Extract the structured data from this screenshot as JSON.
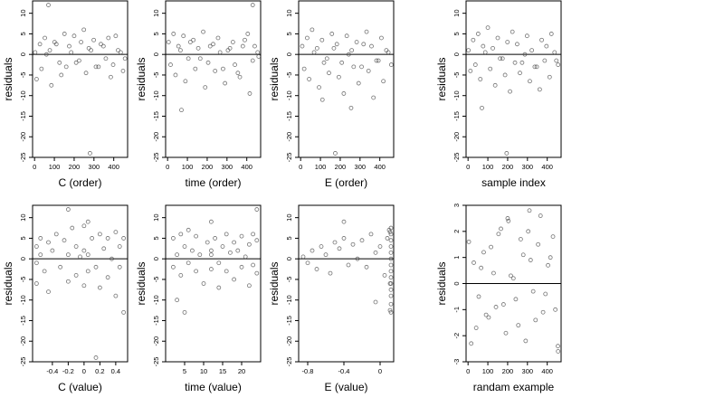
{
  "chart_data": [
    {
      "type": "scatter",
      "xlabel": "C (order)",
      "ylabel": "residuals",
      "xlim": [
        -10,
        470
      ],
      "ylim": [
        -25,
        13
      ],
      "xticks": [
        0,
        100,
        200,
        300,
        400
      ],
      "yticks": [
        -25,
        -20,
        -15,
        -10,
        -5,
        0,
        5,
        10
      ],
      "reference_line": 0,
      "series": [
        {
          "x": [
            3,
            27,
            52,
            77,
            101,
            126,
            151,
            175,
            200,
            225,
            249,
            274,
            299,
            323,
            348,
            373,
            397,
            422,
            447,
            10,
            35,
            60,
            85,
            110,
            135,
            160,
            185,
            210,
            235,
            260,
            285,
            310,
            335,
            360,
            385,
            410,
            435,
            457,
            70,
            280
          ],
          "y": [
            0.5,
            2.5,
            4.0,
            1.0,
            3.0,
            -2.0,
            5.0,
            2.0,
            4.5,
            -1.5,
            6.0,
            1.5,
            3.5,
            -3.0,
            2.0,
            4.0,
            -2.5,
            1.0,
            -4.0,
            -6.0,
            -3.5,
            0.0,
            -7.5,
            2.5,
            -5.0,
            -3.0,
            0.5,
            -2.0,
            3.0,
            -4.5,
            1.0,
            -3.0,
            2.5,
            -1.0,
            -5.5,
            4.5,
            0.5,
            -1.0,
            12.0,
            -24.0
          ]
        }
      ]
    },
    {
      "type": "scatter",
      "xlabel": "time (order)",
      "ylabel": "residuals",
      "xlim": [
        -10,
        470
      ],
      "ylim": [
        -25,
        13
      ],
      "xticks": [
        0,
        100,
        200,
        300,
        400
      ],
      "yticks": [
        -25,
        -20,
        -15,
        -10,
        -5,
        0,
        5,
        10
      ],
      "reference_line": 0,
      "series": [
        {
          "x": [
            5,
            30,
            55,
            80,
            105,
            130,
            155,
            180,
            205,
            230,
            255,
            280,
            305,
            330,
            355,
            380,
            405,
            430,
            455,
            15,
            40,
            65,
            90,
            115,
            140,
            165,
            190,
            215,
            240,
            265,
            290,
            315,
            340,
            365,
            390,
            415,
            440,
            460,
            430,
            70
          ],
          "y": [
            3.0,
            5.0,
            2.0,
            4.5,
            -1.0,
            3.5,
            1.5,
            5.5,
            -2.0,
            2.5,
            4.0,
            -3.5,
            1.0,
            3.0,
            -4.5,
            2.0,
            5.0,
            -1.5,
            0.5,
            -2.5,
            -5.0,
            1.0,
            -6.5,
            3.0,
            -3.5,
            -1.0,
            -8.0,
            2.0,
            -4.0,
            0.5,
            -7.0,
            1.5,
            -2.5,
            -5.5,
            3.5,
            -9.5,
            2.0,
            -0.5,
            12.0,
            -13.5
          ]
        }
      ]
    },
    {
      "type": "scatter",
      "xlabel": "E (order)",
      "ylabel": "residuals",
      "xlim": [
        -10,
        470
      ],
      "ylim": [
        -25,
        13
      ],
      "xticks": [
        0,
        100,
        200,
        300,
        400
      ],
      "yticks": [
        -25,
        -20,
        -15,
        -10,
        -5,
        0,
        5,
        10
      ],
      "reference_line": 0,
      "series": [
        {
          "x": [
            8,
            33,
            58,
            83,
            108,
            133,
            158,
            183,
            208,
            233,
            258,
            283,
            308,
            333,
            358,
            383,
            408,
            433,
            458,
            18,
            43,
            68,
            93,
            118,
            143,
            168,
            193,
            218,
            243,
            268,
            293,
            318,
            343,
            368,
            393,
            418,
            443,
            110,
            255,
            175
          ],
          "y": [
            2.0,
            4.0,
            6.0,
            1.5,
            3.5,
            -1.0,
            5.0,
            2.5,
            -2.0,
            4.5,
            1.0,
            3.0,
            -3.0,
            5.5,
            2.0,
            -1.5,
            4.0,
            1.0,
            -2.5,
            -3.5,
            -6.0,
            0.5,
            -8.0,
            -2.0,
            -4.5,
            1.5,
            -5.5,
            -9.5,
            0.0,
            -3.0,
            -7.0,
            2.5,
            -4.0,
            -10.5,
            -1.5,
            -6.5,
            0.5,
            -11.0,
            -13.0,
            -24.0
          ]
        }
      ]
    },
    {
      "type": "scatter",
      "xlabel": "sample index",
      "ylabel": "residuals",
      "xlim": [
        -10,
        470
      ],
      "ylim": [
        -25,
        13
      ],
      "xticks": [
        0,
        100,
        200,
        300,
        400
      ],
      "yticks": [
        -25,
        -20,
        -15,
        -10,
        -5,
        0,
        5,
        10
      ],
      "reference_line": 0,
      "series": [
        {
          "x": [
            2,
            26,
            51,
            76,
            100,
            125,
            150,
            174,
            199,
            224,
            248,
            273,
            298,
            322,
            347,
            372,
            396,
            421,
            446,
            12,
            37,
            62,
            87,
            112,
            137,
            162,
            187,
            212,
            237,
            262,
            287,
            312,
            337,
            362,
            387,
            412,
            437,
            455,
            70,
            195
          ],
          "y": [
            1.0,
            3.5,
            5.0,
            2.0,
            6.5,
            1.5,
            4.0,
            -1.0,
            3.0,
            5.5,
            2.5,
            -2.0,
            4.5,
            1.0,
            -3.0,
            3.5,
            2.0,
            5.0,
            -1.5,
            -4.0,
            -2.5,
            -6.0,
            0.5,
            -3.5,
            -7.5,
            -1.0,
            -5.0,
            -9.0,
            -2.0,
            -4.5,
            0.0,
            -6.5,
            -3.0,
            -8.5,
            -1.5,
            -5.5,
            0.5,
            -2.5,
            -13.0,
            -24.0
          ]
        }
      ]
    },
    {
      "type": "scatter",
      "xlabel": "C (value)",
      "ylabel": "residuals",
      "xlim": [
        -0.65,
        0.55
      ],
      "ylim": [
        -25,
        13
      ],
      "xticks": [
        -0.4,
        -0.2,
        0.0,
        0.2,
        0.4
      ],
      "yticks": [
        -25,
        -20,
        -15,
        -10,
        -5,
        0,
        5,
        10
      ],
      "reference_line": 0,
      "series": [
        {
          "x": [
            -0.6,
            -0.6,
            -0.6,
            -0.55,
            -0.55,
            -0.5,
            -0.45,
            -0.45,
            -0.4,
            -0.35,
            -0.3,
            -0.25,
            -0.2,
            -0.2,
            -0.15,
            -0.1,
            -0.1,
            -0.05,
            0.0,
            0.0,
            0.0,
            0.05,
            0.05,
            0.05,
            0.1,
            0.15,
            0.2,
            0.2,
            0.25,
            0.3,
            0.3,
            0.35,
            0.4,
            0.4,
            0.45,
            0.45,
            0.5,
            0.5,
            -0.2,
            0.15
          ],
          "y": [
            3.0,
            -1.0,
            -6.0,
            5.0,
            1.0,
            -3.0,
            4.0,
            -8.0,
            2.0,
            6.0,
            -2.0,
            4.5,
            1.0,
            -5.5,
            7.5,
            3.0,
            -4.0,
            0.5,
            8.0,
            2.0,
            -6.5,
            9.0,
            1.0,
            -3.0,
            5.0,
            -2.0,
            6.0,
            -7.0,
            2.5,
            5.0,
            -4.5,
            0.0,
            6.5,
            -9.0,
            3.0,
            -2.0,
            5.0,
            -13.0,
            12.0,
            -24.0
          ]
        }
      ]
    },
    {
      "type": "scatter",
      "xlabel": "time (value)",
      "ylabel": "residuals",
      "xlim": [
        0,
        25
      ],
      "ylim": [
        -25,
        13
      ],
      "xticks": [
        5,
        10,
        15,
        20
      ],
      "yticks": [
        -25,
        -20,
        -15,
        -10,
        -5,
        0,
        5,
        10
      ],
      "reference_line": 0,
      "series": [
        {
          "x": [
            2,
            2,
            3,
            4,
            4,
            5,
            6,
            6,
            7,
            8,
            8,
            9,
            10,
            11,
            12,
            12,
            12,
            13,
            14,
            14,
            15,
            16,
            16,
            17,
            18,
            18,
            19,
            20,
            20,
            21,
            22,
            22,
            23,
            23,
            24,
            24,
            3,
            12,
            24,
            5
          ],
          "y": [
            5.0,
            -2.0,
            1.0,
            6.0,
            -4.0,
            3.0,
            -1.0,
            7.0,
            2.0,
            -3.0,
            5.5,
            1.0,
            -6.0,
            4.0,
            9.0,
            2.0,
            -2.5,
            5.0,
            -1.0,
            -7.0,
            3.0,
            6.0,
            -3.0,
            1.5,
            4.0,
            -5.0,
            2.0,
            5.5,
            -2.0,
            0.5,
            3.5,
            -6.5,
            6.0,
            -1.5,
            4.5,
            -3.5,
            -10.0,
            1.0,
            12.0,
            -13.0
          ]
        }
      ]
    },
    {
      "type": "scatter",
      "xlabel": "E (value)",
      "ylabel": "residuals",
      "xlim": [
        -0.9,
        0.15
      ],
      "ylim": [
        -25,
        13
      ],
      "xticks": [
        -0.8,
        -0.4,
        0.0
      ],
      "yticks": [
        -25,
        -20,
        -15,
        -10,
        -5,
        0,
        5,
        10
      ],
      "reference_line": 0,
      "series": [
        {
          "x": [
            -0.85,
            -0.8,
            -0.75,
            -0.7,
            -0.65,
            -0.6,
            -0.55,
            -0.5,
            -0.45,
            -0.4,
            -0.35,
            -0.3,
            -0.25,
            -0.2,
            -0.15,
            -0.1,
            -0.05,
            0.0,
            0.05,
            0.08,
            0.1,
            0.11,
            0.11,
            0.12,
            0.12,
            0.12,
            0.12,
            0.12,
            0.12,
            0.12,
            0.12,
            0.12,
            0.12,
            0.12,
            0.12,
            0.12,
            0.11,
            -0.4,
            -0.05,
            0.12
          ],
          "y": [
            0.5,
            -1.0,
            2.0,
            -2.5,
            3.0,
            1.0,
            -3.5,
            4.0,
            2.5,
            5.0,
            -1.5,
            3.5,
            0.0,
            4.5,
            -2.0,
            6.0,
            1.5,
            3.0,
            -4.0,
            5.0,
            7.0,
            6.5,
            -6.0,
            7.5,
            6.0,
            4.5,
            3.0,
            1.5,
            0.0,
            -1.5,
            -3.0,
            -4.5,
            -6.0,
            -7.5,
            -9.0,
            -11.0,
            -12.5,
            9.0,
            -10.5,
            -13.0
          ]
        }
      ]
    },
    {
      "type": "scatter",
      "xlabel": "randam example",
      "ylabel": "residuals",
      "xlim": [
        -10,
        470
      ],
      "ylim": [
        -3,
        3
      ],
      "xticks": [
        0,
        100,
        200,
        300,
        400
      ],
      "yticks": [
        -3,
        -2,
        -1,
        0,
        1,
        2,
        3
      ],
      "reference_line": 0,
      "series": [
        {
          "x": [
            4,
            29,
            54,
            79,
            104,
            129,
            154,
            179,
            204,
            229,
            254,
            279,
            304,
            329,
            354,
            379,
            404,
            429,
            454,
            16,
            41,
            66,
            91,
            116,
            141,
            166,
            191,
            216,
            241,
            266,
            291,
            316,
            341,
            366,
            391,
            416,
            441,
            200,
            310,
            455
          ],
          "y": [
            1.6,
            0.8,
            -0.5,
            1.2,
            -1.3,
            0.4,
            1.9,
            -0.8,
            2.4,
            0.2,
            -1.6,
            1.1,
            2.0,
            -0.3,
            1.5,
            -1.1,
            0.7,
            1.8,
            -2.4,
            -2.3,
            -1.7,
            0.6,
            -1.2,
            1.4,
            -0.9,
            2.1,
            -1.9,
            0.3,
            -0.6,
            1.7,
            -2.2,
            0.9,
            -1.4,
            2.6,
            -0.4,
            1.0,
            -1.0,
            2.5,
            2.8,
            -2.6
          ]
        }
      ]
    }
  ]
}
